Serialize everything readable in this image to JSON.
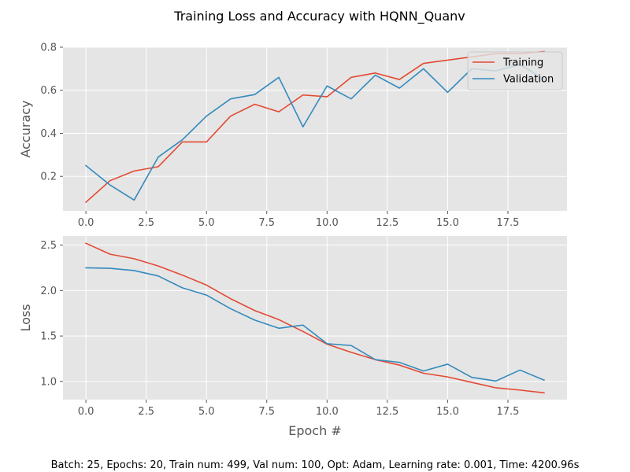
{
  "figure": {
    "title": "Training Loss and Accuracy with HQNN_Quanv",
    "footer": "Batch: 25, Epochs: 20, Train num: 499, Val num: 100, Opt: Adam, Learning rate: 0.001, Time: 4200.96s",
    "style": "ggplot",
    "colors": {
      "background": "#e5e5e5",
      "grid": "#ffffff",
      "training": "#e24a33",
      "validation": "#348abd"
    }
  },
  "chart_data": [
    {
      "type": "line",
      "title": "",
      "xlabel": "",
      "ylabel": "Accuracy",
      "xlim": [
        -0.95,
        19.95
      ],
      "ylim": [
        0.04,
        0.8
      ],
      "xticks": [
        "0.0",
        "2.5",
        "5.0",
        "7.5",
        "10.0",
        "12.5",
        "15.0",
        "17.5"
      ],
      "yticks": [
        "0.2",
        "0.4",
        "0.6",
        "0.8"
      ],
      "grid": true,
      "legend": "top-right",
      "x": [
        0,
        1,
        2,
        3,
        4,
        5,
        6,
        7,
        8,
        9,
        10,
        11,
        12,
        13,
        14,
        15,
        16,
        17,
        18,
        19
      ],
      "series": [
        {
          "name": "Training",
          "color": "#e24a33",
          "values": [
            0.08,
            0.18,
            0.225,
            0.245,
            0.36,
            0.36,
            0.48,
            0.535,
            0.5,
            0.578,
            0.57,
            0.66,
            0.68,
            0.65,
            0.725,
            0.74,
            0.755,
            0.77,
            0.77,
            0.78
          ]
        },
        {
          "name": "Validation",
          "color": "#348abd",
          "values": [
            0.25,
            0.16,
            0.09,
            0.29,
            0.37,
            0.48,
            0.56,
            0.58,
            0.66,
            0.43,
            0.62,
            0.56,
            0.67,
            0.61,
            0.7,
            0.59,
            0.7,
            0.69,
            0.72,
            0.65
          ]
        }
      ]
    },
    {
      "type": "line",
      "title": "",
      "xlabel": "Epoch #",
      "ylabel": "Loss",
      "xlim": [
        -0.95,
        19.95
      ],
      "ylim": [
        0.8,
        2.6
      ],
      "xticks": [
        "0.0",
        "2.5",
        "5.0",
        "7.5",
        "10.0",
        "12.5",
        "15.0",
        "17.5"
      ],
      "yticks": [
        "1.0",
        "1.5",
        "2.0",
        "2.5"
      ],
      "grid": true,
      "legend": "none",
      "x": [
        0,
        1,
        2,
        3,
        4,
        5,
        6,
        7,
        8,
        9,
        10,
        11,
        12,
        13,
        14,
        15,
        16,
        17,
        18,
        19
      ],
      "series": [
        {
          "name": "Training",
          "color": "#e24a33",
          "values": [
            2.52,
            2.4,
            2.35,
            2.27,
            2.17,
            2.06,
            1.91,
            1.78,
            1.68,
            1.55,
            1.41,
            1.32,
            1.24,
            1.18,
            1.09,
            1.05,
            0.99,
            0.93,
            0.905,
            0.875
          ]
        },
        {
          "name": "Validation",
          "color": "#348abd",
          "values": [
            2.25,
            2.245,
            2.22,
            2.16,
            2.03,
            1.95,
            1.8,
            1.675,
            1.585,
            1.62,
            1.415,
            1.395,
            1.24,
            1.21,
            1.115,
            1.19,
            1.045,
            1.005,
            1.125,
            1.015
          ]
        }
      ]
    }
  ]
}
